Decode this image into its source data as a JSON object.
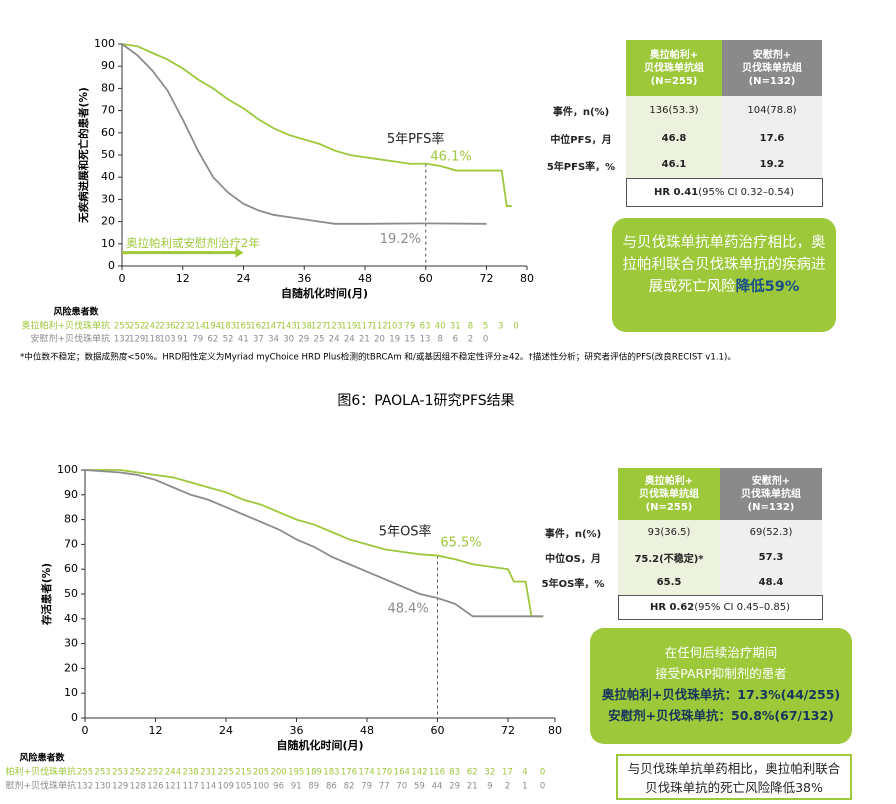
{
  "chart_data": [
    {
      "type": "line",
      "ylabel": "无疾病进展和死亡的患者(%)",
      "xlabel": "自随机化时间(月)",
      "xlim": [
        0,
        80
      ],
      "xticks": [
        0,
        12,
        24,
        36,
        48,
        60,
        72,
        80
      ],
      "ylim": [
        0,
        100
      ],
      "yticks": [
        0,
        10,
        20,
        30,
        40,
        50,
        60,
        70,
        80,
        90,
        100
      ],
      "series": [
        {
          "color": "#9cc83a",
          "x": [
            0,
            3,
            6,
            9,
            12,
            15,
            18,
            21,
            24,
            27,
            30,
            33,
            36,
            39,
            42,
            45,
            48,
            51,
            54,
            57,
            60,
            63,
            66,
            69,
            72,
            75,
            76,
            77
          ],
          "values": [
            100,
            99,
            96,
            93,
            89,
            84,
            80,
            75,
            71,
            66,
            62,
            59,
            57,
            55,
            52,
            50,
            49,
            48,
            47,
            46,
            46.1,
            45,
            43,
            43,
            43,
            43,
            27,
            27
          ]
        },
        {
          "color": "#8c8c8c",
          "x": [
            0,
            3,
            6,
            9,
            12,
            15,
            18,
            21,
            24,
            27,
            30,
            33,
            36,
            39,
            42,
            48,
            60,
            72
          ],
          "values": [
            100,
            95,
            88,
            79,
            66,
            52,
            40,
            33,
            28,
            25,
            23,
            22,
            21,
            20,
            19,
            19,
            19.2,
            19
          ]
        }
      ],
      "reference_x": 60,
      "annotations": [
        {
          "text": "5年PFS率",
          "x": 58,
          "y": 57,
          "color": "#222222"
        },
        {
          "text": "46.1%",
          "x": 65,
          "y": 49,
          "color": "#9cc83a"
        },
        {
          "text": "19.2%",
          "x": 55,
          "y": 12,
          "color": "#8c8c8c"
        }
      ],
      "treatment_arrow": {
        "text": "奥拉帕利或安慰剂治疗2年",
        "x": [
          0,
          24
        ],
        "y": 6,
        "color": "#9cc83a"
      },
      "at_risk": {
        "title": "风险患者数",
        "rows": [
          {
            "label": "奥拉帕利+贝伐珠单抗",
            "color": "#9cc83a",
            "values": [
              255,
              252,
              242,
              236,
              223,
              214,
              194,
              183,
              165,
              162,
              147,
              143,
              138,
              127,
              123,
              119,
              117,
              112,
              103,
              79,
              63,
              40,
              31,
              8,
              5,
              3,
              0
            ]
          },
          {
            "label": "安慰剂+贝伐珠单抗",
            "color": "#8c8c8c",
            "values": [
              132,
              129,
              118,
              103,
              91,
              79,
              62,
              52,
              41,
              37,
              34,
              30,
              29,
              25,
              24,
              24,
              21,
              20,
              19,
              15,
              13,
              8,
              6,
              2,
              0
            ]
          }
        ]
      }
    },
    {
      "type": "line",
      "ylabel": "存活患者(%)",
      "xlabel": "自随机化时间(月)",
      "xlim": [
        0,
        80
      ],
      "xticks": [
        0,
        12,
        24,
        36,
        48,
        60,
        72,
        80
      ],
      "ylim": [
        0,
        100
      ],
      "yticks": [
        0,
        10,
        20,
        30,
        40,
        50,
        60,
        70,
        80,
        90,
        100
      ],
      "series": [
        {
          "color": "#9cc83a",
          "x": [
            0,
            6,
            9,
            12,
            15,
            18,
            21,
            24,
            27,
            30,
            33,
            36,
            39,
            42,
            45,
            48,
            51,
            54,
            57,
            60,
            63,
            66,
            69,
            72,
            73,
            75,
            76,
            78
          ],
          "values": [
            100,
            100,
            99,
            98,
            97,
            95,
            93,
            91,
            88,
            86,
            83,
            80,
            78,
            75,
            72,
            70,
            68,
            67,
            66,
            65.5,
            64,
            62,
            61,
            60,
            55,
            55,
            41,
            41
          ]
        },
        {
          "color": "#8c8c8c",
          "x": [
            0,
            6,
            9,
            12,
            15,
            18,
            21,
            24,
            27,
            30,
            33,
            36,
            39,
            42,
            45,
            48,
            51,
            54,
            57,
            60,
            63,
            66,
            69,
            72,
            75,
            78
          ],
          "values": [
            100,
            99,
            98,
            96,
            93,
            90,
            88,
            85,
            82,
            79,
            76,
            72,
            69,
            65,
            62,
            59,
            56,
            53,
            50,
            48.4,
            46,
            41,
            41,
            41,
            41,
            41
          ]
        }
      ],
      "reference_x": 60,
      "annotations": [
        {
          "text": "5年OS率",
          "x": 54.5,
          "y": 75,
          "color": "#222222"
        },
        {
          "text": "65.5%",
          "x": 64,
          "y": 70.5,
          "color": "#9cc83a"
        },
        {
          "text": "48.4%",
          "x": 55,
          "y": 44,
          "color": "#8c8c8c"
        }
      ],
      "at_risk": {
        "title": "风险患者数",
        "rows": [
          {
            "label": "帕利+贝伐珠单抗",
            "color": "#9cc83a",
            "values": [
              255,
              253,
              253,
              252,
              252,
              244,
              238,
              231,
              225,
              215,
              205,
              200,
              195,
              189,
              183,
              176,
              174,
              170,
              164,
              142,
              116,
              83,
              62,
              32,
              17,
              4,
              0
            ]
          },
          {
            "label": "慰剂+贝伐珠单抗",
            "color": "#8c8c8c",
            "values": [
              132,
              130,
              129,
              128,
              126,
              121,
              117,
              114,
              109,
              105,
              100,
              96,
              91,
              89,
              86,
              82,
              79,
              77,
              70,
              59,
              44,
              29,
              21,
              9,
              2,
              1,
              0
            ]
          }
        ]
      }
    }
  ],
  "tables": [
    {
      "headers": [
        [
          "奥拉帕利+",
          "贝伐珠单抗组",
          "(N=255)"
        ],
        [
          "安慰剂+",
          "贝伐珠单抗组",
          "(N=132)"
        ]
      ],
      "rows": [
        [
          "事件，n(%)",
          "136(53.3)",
          "104(78.8)"
        ],
        [
          "中位PFS，月",
          "46.8",
          "17.6"
        ],
        [
          "5年PFS率，%",
          "46.1",
          "19.2"
        ]
      ],
      "hr": {
        "value": "HR 0.41",
        "ci": "(95% CI 0.32–0.54)"
      }
    },
    {
      "headers": [
        [
          "奥拉帕利+",
          "贝伐珠单抗组",
          "(N=255)"
        ],
        [
          "安慰剂+",
          "贝伐珠单抗组",
          "(N=132)"
        ]
      ],
      "rows": [
        [
          "事件，n(%)",
          "93(36.5)",
          "69(52.3)"
        ],
        [
          "中位OS，月",
          "75.2(不稳定)*",
          "57.3"
        ],
        [
          "5年OS率，%",
          "65.5",
          "48.4"
        ]
      ],
      "hr": {
        "value": "HR 0.62",
        "ci": "(95% CI 0.45–0.85)"
      }
    }
  ],
  "callouts": [
    {
      "text": "与贝伐珠单抗单药治疗相比，奥拉帕利联合贝伐珠单抗的疾病进展或死亡风险",
      "emphasis": "降低59%"
    },
    {
      "lines": [
        "在任何后续治疗期间",
        "接受PARP抑制剂的患者",
        "奥拉帕利+贝伐珠单抗：17.3%(44/255)",
        "安慰剂+贝伐珠单抗：50.8%(67/132)"
      ]
    },
    {
      "text": "与贝伐珠单抗单药相比，奥拉帕利联合贝伐珠单抗的死亡风险降低38%"
    }
  ],
  "footnote": "*中位数不稳定；数据成熟度<50%。HRD阳性定义为Myriad myChoice HRD Plus检测的tBRCAm 和/或基因组不稳定性评分≥42。†描述性分析；研究者评估的PFS(改良RECIST v1.1)。",
  "caption": "图6：PAOLA-1研究PFS结果"
}
